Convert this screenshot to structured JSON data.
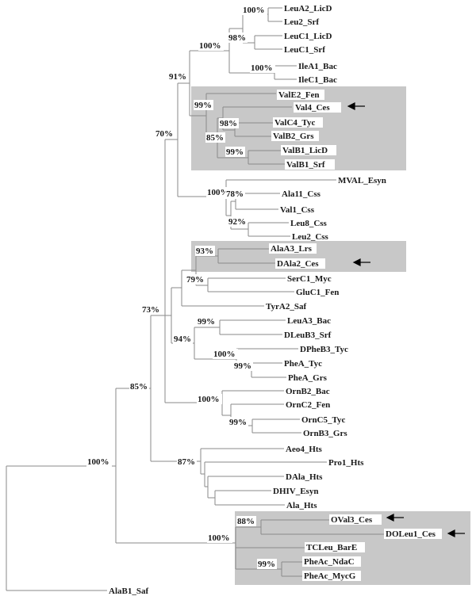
{
  "tree": {
    "leaves": [
      "LeuA2_LicD",
      "Leu2_Srf",
      "LeuC1_LicD",
      "LeuC1_Srf",
      "IleA1_Bac",
      "IleC1_Bac",
      "ValE2_Fen",
      "Val4_Ces",
      "ValC4_Tyc",
      "ValB2_Grs",
      "ValB1_LicD",
      "ValB1_Srf",
      "MVAL_Esyn",
      "Ala11_Css",
      "Val1_Css",
      "Leu8_Css",
      "Leu2_Css",
      "AlaA3_Lrs",
      "DAla2_Ces",
      "SerC1_Myc",
      "GluC1_Fen",
      "TyrA2_Saf",
      "LeuA3_Bac",
      "DLeuB3_Srf",
      "DPheB3_Tyc",
      "PheA_Tyc",
      "PheA_Grs",
      "OrnB2_Bac",
      "OrnC2_Fen",
      "OrnC5_Tyc",
      "OrnB3_Grs",
      "Aeo4_Hts",
      "Pro1_Hts",
      "DAla_Hts",
      "DHIV_Esyn",
      "Ala_Hts",
      "OVal3_Ces",
      "DOLeu1_Ces",
      "TCLeu_BarE",
      "PheAc_NdaC",
      "PheAc_MycG",
      "AlaB1_Saf"
    ],
    "bootstrap": [
      "100%",
      "98%",
      "100%",
      "100%",
      "91%",
      "99%",
      "98%",
      "85%",
      "99%",
      "70%",
      "100%",
      "78%",
      "92%",
      "93%",
      "79%",
      "73%",
      "99%",
      "94%",
      "100%",
      "99%",
      "85%",
      "100%",
      "99%",
      "87%",
      "100%",
      "88%",
      "100%",
      "99%"
    ],
    "highlighted_leaves": [
      "Val4_Ces",
      "DAla2_Ces",
      "OVal3_Ces",
      "DOLeu1_Ces"
    ],
    "box_color": "#c8c8c8",
    "branch_color": "#8a8a8a",
    "arrow_icon": "left-arrow"
  }
}
